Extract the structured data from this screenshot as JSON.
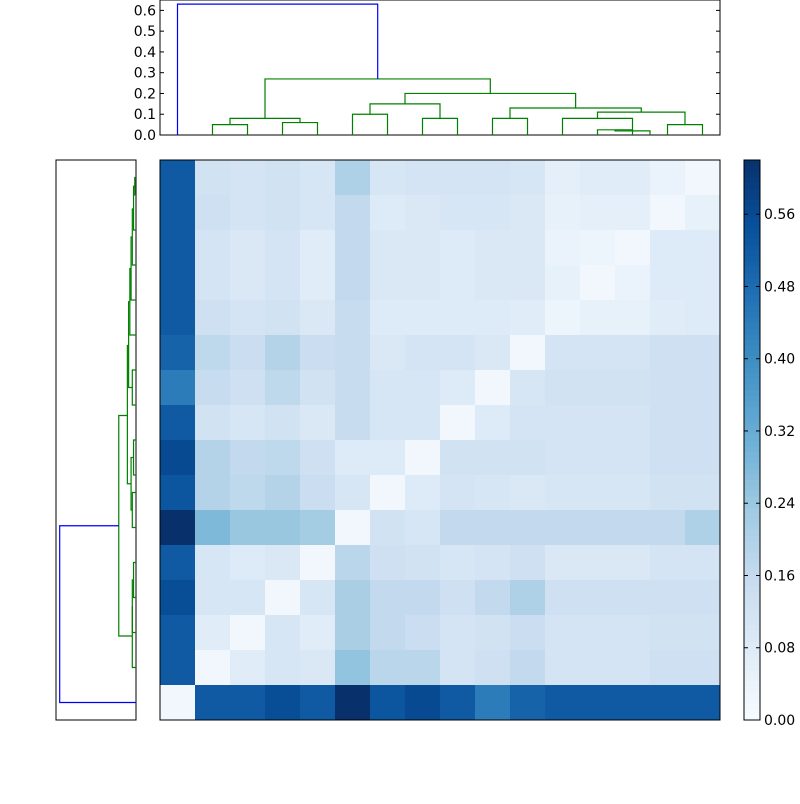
{
  "chart_data": {
    "type": "heatmap",
    "title": "",
    "xlabel": "",
    "ylabel": "",
    "n": 16,
    "matrix": [
      [
        0.52,
        0.12,
        0.11,
        0.12,
        0.1,
        0.2,
        0.1,
        0.11,
        0.11,
        0.11,
        0.1,
        0.06,
        0.07,
        0.07,
        0.04,
        0.02
      ],
      [
        0.52,
        0.13,
        0.11,
        0.12,
        0.1,
        0.16,
        0.08,
        0.09,
        0.1,
        0.1,
        0.09,
        0.05,
        0.06,
        0.06,
        0.02,
        0.05
      ],
      [
        0.52,
        0.11,
        0.09,
        0.11,
        0.07,
        0.16,
        0.09,
        0.09,
        0.08,
        0.09,
        0.09,
        0.04,
        0.03,
        0.02,
        0.08,
        0.08
      ],
      [
        0.52,
        0.11,
        0.09,
        0.11,
        0.07,
        0.16,
        0.09,
        0.09,
        0.08,
        0.09,
        0.09,
        0.05,
        0.02,
        0.04,
        0.08,
        0.08
      ],
      [
        0.52,
        0.13,
        0.11,
        0.12,
        0.09,
        0.15,
        0.08,
        0.08,
        0.08,
        0.08,
        0.07,
        0.03,
        0.05,
        0.05,
        0.07,
        0.08
      ],
      [
        0.5,
        0.17,
        0.14,
        0.19,
        0.14,
        0.15,
        0.09,
        0.11,
        0.11,
        0.09,
        0.02,
        0.11,
        0.11,
        0.11,
        0.13,
        0.13
      ],
      [
        0.44,
        0.15,
        0.13,
        0.17,
        0.12,
        0.15,
        0.1,
        0.1,
        0.08,
        0.02,
        0.1,
        0.12,
        0.12,
        0.12,
        0.13,
        0.13
      ],
      [
        0.52,
        0.12,
        0.1,
        0.12,
        0.09,
        0.15,
        0.1,
        0.1,
        0.02,
        0.08,
        0.11,
        0.11,
        0.11,
        0.11,
        0.13,
        0.13
      ],
      [
        0.56,
        0.19,
        0.16,
        0.17,
        0.13,
        0.08,
        0.08,
        0.02,
        0.12,
        0.12,
        0.12,
        0.11,
        0.11,
        0.11,
        0.13,
        0.13
      ],
      [
        0.53,
        0.19,
        0.17,
        0.19,
        0.14,
        0.1,
        0.02,
        0.08,
        0.11,
        0.1,
        0.09,
        0.1,
        0.1,
        0.1,
        0.12,
        0.12
      ],
      [
        0.62,
        0.28,
        0.24,
        0.24,
        0.22,
        0.02,
        0.12,
        0.1,
        0.16,
        0.16,
        0.16,
        0.16,
        0.16,
        0.16,
        0.16,
        0.2
      ],
      [
        0.52,
        0.1,
        0.08,
        0.09,
        0.02,
        0.18,
        0.13,
        0.12,
        0.1,
        0.11,
        0.13,
        0.09,
        0.09,
        0.09,
        0.11,
        0.11
      ],
      [
        0.55,
        0.1,
        0.1,
        0.02,
        0.1,
        0.21,
        0.16,
        0.16,
        0.13,
        0.16,
        0.2,
        0.13,
        0.13,
        0.13,
        0.13,
        0.13
      ],
      [
        0.52,
        0.07,
        0.02,
        0.1,
        0.07,
        0.21,
        0.16,
        0.14,
        0.11,
        0.12,
        0.14,
        0.11,
        0.11,
        0.11,
        0.12,
        0.12
      ],
      [
        0.52,
        0.02,
        0.07,
        0.1,
        0.09,
        0.25,
        0.18,
        0.18,
        0.11,
        0.13,
        0.16,
        0.11,
        0.11,
        0.11,
        0.13,
        0.13
      ],
      [
        0.02,
        0.52,
        0.52,
        0.55,
        0.52,
        0.62,
        0.53,
        0.56,
        0.52,
        0.44,
        0.5,
        0.52,
        0.52,
        0.52,
        0.52,
        0.52
      ]
    ],
    "colorbar": {
      "range": [
        0.0,
        0.62
      ],
      "ticks": [
        "0.00",
        "0.08",
        "0.16",
        "0.24",
        "0.32",
        "0.40",
        "0.48",
        "0.56"
      ],
      "colormap": "Blues"
    },
    "top_dendrogram": {
      "yticks": [
        "0.0",
        "0.1",
        "0.2",
        "0.3",
        "0.4",
        "0.5",
        "0.6"
      ],
      "ylim": [
        0.0,
        0.65
      ],
      "links": [
        {
          "l": 0,
          "r": 1,
          "h": 0.05,
          "color": "#008000"
        },
        {
          "l": 2,
          "r": 3,
          "h": 0.06,
          "color": "#008000"
        },
        {
          "l": "a",
          "r": "b",
          "h": 0.08,
          "color": "#008000",
          "la": 0.5,
          "lb": 2.5
        },
        {
          "l": 5,
          "r": 6,
          "h": 0.08,
          "color": "#008000"
        },
        {
          "l": 4,
          "r": "c",
          "h": 0.11,
          "color": "#008000",
          "lb": 5.5
        },
        {
          "l": 7,
          "r": 8,
          "h": 0.08,
          "color": "#008000"
        },
        {
          "l": 12,
          "r": 13,
          "h": 0.02,
          "color": "#008000"
        },
        {
          "l": 11,
          "r": "d",
          "h": 0.03,
          "color": "#008000",
          "lb": 12.5
        },
        {
          "l": 14,
          "r": 15,
          "h": 0.05,
          "color": "#008000"
        },
        {
          "l": "e",
          "r": "f",
          "h": 0.08,
          "color": "#008000",
          "la": 11.75,
          "lb": 14.5
        },
        {
          "l": 10,
          "r": "g",
          "h": 0.11,
          "color": "#008000",
          "lb": 13.125
        },
        {
          "l": 9,
          "r": "h",
          "h": 0.13,
          "color": "#008000",
          "lb": 11.5625
        },
        {
          "l": "i",
          "r": "j",
          "h": 0.2,
          "color": "#008000",
          "la": 7.5,
          "lb": 10.28
        },
        {
          "l": "k",
          "r": "m",
          "h": 0.27,
          "color": "#008000",
          "la": 1.5,
          "lb": 8.9
        },
        {
          "l": "n",
          "r": "o",
          "h": 0.63,
          "color": "#0000ff",
          "la": 0,
          "lb": 5.2
        }
      ]
    },
    "left_dendrogram": {
      "links": [
        {
          "a": 0,
          "b": 1,
          "h": 0.01,
          "color": "#008000"
        },
        {
          "a": 0.5,
          "b": 2,
          "h": 0.02,
          "color": "#008000"
        },
        {
          "a": 3,
          "b": 4,
          "h": 0.02,
          "color": "#008000"
        },
        {
          "a": 1.25,
          "b": 3.5,
          "h": 0.03,
          "color": "#008000"
        },
        {
          "a": 2.4,
          "b": 5,
          "h": 0.04,
          "color": "#008000"
        },
        {
          "a": 3.7,
          "b": 6,
          "h": 0.05,
          "color": "#008000"
        },
        {
          "a": 7,
          "b": 8,
          "h": 0.03,
          "color": "#008000"
        },
        {
          "a": 4.9,
          "b": 7.5,
          "h": 0.07,
          "color": "#008000"
        },
        {
          "a": 9,
          "b": 10,
          "h": 0.04,
          "color": "#008000"
        },
        {
          "a": 6.2,
          "b": 9.5,
          "h": 0.13,
          "color": "#008000"
        },
        {
          "a": 11,
          "b": 12,
          "h": 0.03,
          "color": "#008000"
        },
        {
          "a": 11.5,
          "b": 13,
          "h": 0.04,
          "color": "#008000"
        },
        {
          "a": 14,
          "b": 15,
          "h": 0.03,
          "color": "#008000"
        },
        {
          "a": 12.25,
          "b": 14.5,
          "h": 0.05,
          "color": "#008000"
        },
        {
          "a": 7.85,
          "b": 13.4,
          "h": 0.21,
          "color": "#008000"
        },
        {
          "a": 10.6,
          "b": 16,
          "h": 0.62,
          "color": "#0000ff"
        }
      ]
    }
  }
}
